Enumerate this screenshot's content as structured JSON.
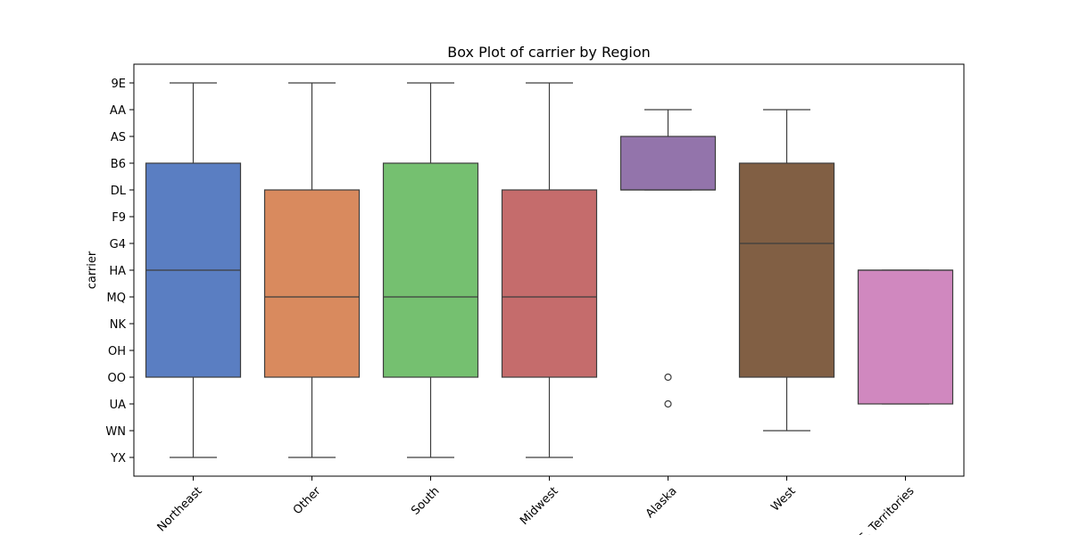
{
  "chart_data": {
    "type": "box",
    "title": "Box Plot of carrier by Region",
    "xlabel": "",
    "ylabel": "carrier",
    "y_categories": [
      "9E",
      "AA",
      "AS",
      "B6",
      "DL",
      "F9",
      "G4",
      "HA",
      "MQ",
      "NK",
      "OH",
      "OO",
      "UA",
      "WN",
      "YX"
    ],
    "categories": [
      "Northeast",
      "Other",
      "South",
      "Midwest",
      "Alaska",
      "West",
      "U.S. Territories"
    ],
    "boxes": [
      {
        "category": "Northeast",
        "whisker_low": "9E",
        "q1": "B6",
        "median": "HA",
        "q3": "OO",
        "whisker_high": "YX",
        "outliers": [],
        "color": "#5a7ec2"
      },
      {
        "category": "Other",
        "whisker_low": "9E",
        "q1": "DL",
        "median": "MQ",
        "q3": "OO",
        "whisker_high": "YX",
        "outliers": [],
        "color": "#d98a5e"
      },
      {
        "category": "South",
        "whisker_low": "9E",
        "q1": "B6",
        "median": "MQ",
        "q3": "OO",
        "whisker_high": "YX",
        "outliers": [],
        "color": "#75c070"
      },
      {
        "category": "Midwest",
        "whisker_low": "9E",
        "q1": "DL",
        "median": "MQ",
        "q3": "OO",
        "whisker_high": "YX",
        "outliers": [],
        "color": "#c56c6c"
      },
      {
        "category": "Alaska",
        "whisker_low": "AA",
        "q1": "AS",
        "median": "DL",
        "q3": "DL",
        "whisker_high": "DL",
        "outliers": [
          "OO",
          "UA"
        ],
        "color": "#9374ab"
      },
      {
        "category": "West",
        "whisker_low": "AA",
        "q1": "B6",
        "median": "G4",
        "q3": "OO",
        "whisker_high": "WN",
        "outliers": [],
        "color": "#815f44"
      },
      {
        "category": "U.S. Territories",
        "whisker_low": "HA",
        "q1": "HA",
        "median": "HA",
        "q3": "UA",
        "whisker_high": "UA",
        "outliers": [],
        "color": "#d088bf"
      }
    ],
    "grid": false,
    "legend": "none"
  }
}
